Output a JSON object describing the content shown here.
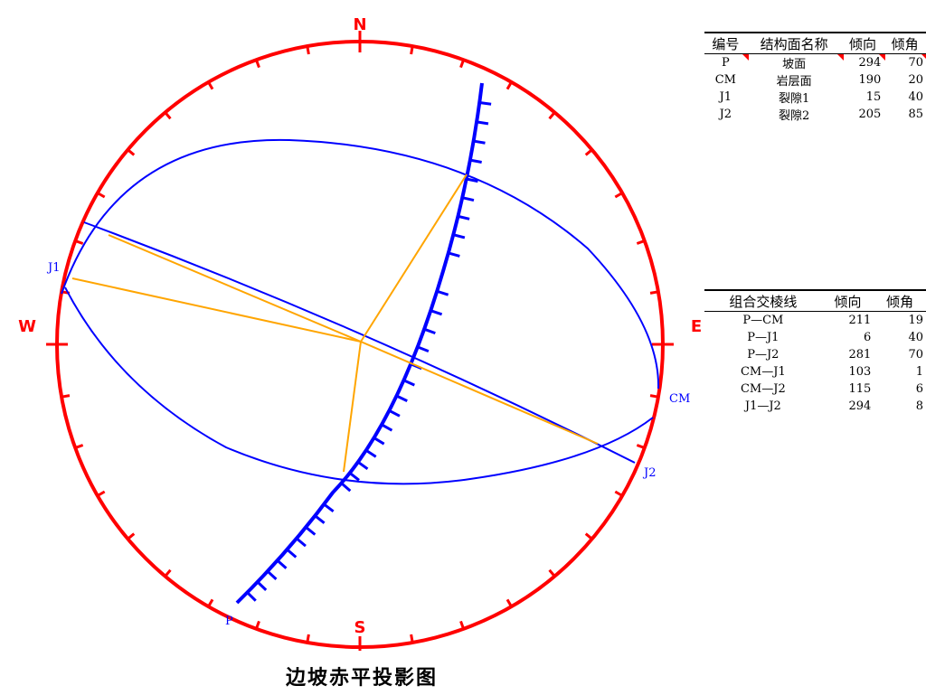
{
  "compass": {
    "north": "N",
    "south": "S",
    "east": "E",
    "west": "W"
  },
  "plane_labels": {
    "p": "P",
    "cm": "CM",
    "j1": "J1",
    "j2": "J2"
  },
  "colors": {
    "net": "#ff0000",
    "planes": "#0000ff",
    "intersection_lines": "#ffa500"
  },
  "planes_table": {
    "headers": [
      "编号",
      "结构面名称",
      "倾向",
      "倾角"
    ],
    "rows": [
      {
        "id": "P",
        "name": "坡面",
        "dip_direction": "294",
        "dip": "70"
      },
      {
        "id": "CM",
        "name": "岩层面",
        "dip_direction": "190",
        "dip": "20"
      },
      {
        "id": "J1",
        "name": "裂隙1",
        "dip_direction": "15",
        "dip": "40"
      },
      {
        "id": "J2",
        "name": "裂隙2",
        "dip_direction": "205",
        "dip": "85"
      }
    ]
  },
  "intersections_table": {
    "headers": [
      "组合交棱线",
      "倾向",
      "倾角"
    ],
    "rows": [
      {
        "combo": "P—CM",
        "trend": "211",
        "plunge": "19"
      },
      {
        "combo": "P—J1",
        "trend": "6",
        "plunge": "40"
      },
      {
        "combo": "P—J2",
        "trend": "281",
        "plunge": "70"
      },
      {
        "combo": "CM—J1",
        "trend": "103",
        "plunge": "1"
      },
      {
        "combo": "CM—J2",
        "trend": "115",
        "plunge": "6"
      },
      {
        "combo": "J1—J2",
        "trend": "294",
        "plunge": "8"
      }
    ]
  },
  "caption": "边坡赤平投影图"
}
